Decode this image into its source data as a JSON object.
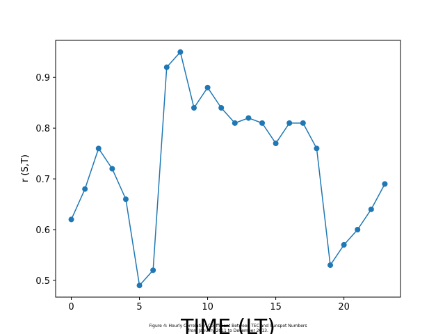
{
  "chart_data": {
    "type": "line",
    "title": "",
    "xlabel": "TIME (LT)",
    "ylabel": "r (S,T)",
    "caption": [
      "Figure 4: Hourly Correlation Coefficient Between TEC and Sunspot Numbers",
      "from January 2011 to December 2013."
    ],
    "x": [
      0,
      1,
      2,
      3,
      4,
      5,
      6,
      7,
      8,
      9,
      10,
      11,
      12,
      13,
      14,
      15,
      16,
      17,
      18,
      19,
      20,
      21,
      22,
      23
    ],
    "series": [
      {
        "values": [
          0.62,
          0.68,
          0.76,
          0.72,
          0.66,
          0.49,
          0.52,
          0.92,
          0.95,
          0.84,
          0.88,
          0.84,
          0.81,
          0.82,
          0.81,
          0.77,
          0.81,
          0.81,
          0.76,
          0.53,
          0.57,
          0.6,
          0.64,
          0.69
        ],
        "color": "#1f77b4",
        "marker": "circle"
      }
    ],
    "xlim": [
      -1.15,
      24.15
    ],
    "ylim": [
      0.467,
      0.973
    ],
    "xticks": [
      0,
      5,
      10,
      15,
      20
    ],
    "xtick_labels": [
      "0",
      "5",
      "10",
      "15",
      "20"
    ],
    "yticks": [
      0.5,
      0.6,
      0.7,
      0.8,
      0.9
    ],
    "ytick_labels": [
      "0.5",
      "0.6",
      "0.7",
      "0.8",
      "0.9"
    ],
    "grid": false,
    "legend": false
  }
}
